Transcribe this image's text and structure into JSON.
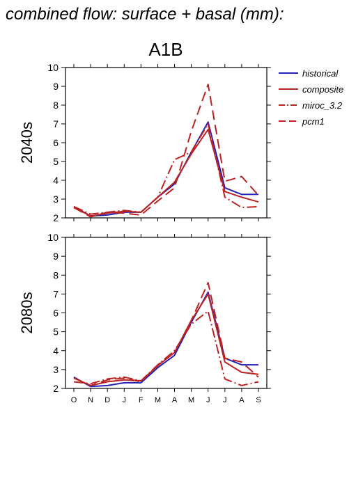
{
  "suptitle": "combined flow: surface + basal (mm):",
  "chart_data": {
    "type": "line",
    "scenario": "A1B",
    "categories": [
      "O",
      "N",
      "D",
      "J",
      "F",
      "M",
      "A",
      "M",
      "J",
      "J",
      "A",
      "S"
    ],
    "ylim": [
      2,
      10
    ],
    "yticks": [
      2,
      3,
      4,
      5,
      6,
      7,
      8,
      9,
      10
    ],
    "legend_position": "top-right, outside plot",
    "series_styles": [
      {
        "name": "historical",
        "color": "#2222bb",
        "dash": "solid"
      },
      {
        "name": "composite",
        "color": "#bb2222",
        "dash": "solid"
      },
      {
        "name": "miroc_3.2",
        "color": "#bb2222",
        "dash": "dashdot"
      },
      {
        "name": "pcm1",
        "color": "#bb2222",
        "dash": "longdash"
      }
    ],
    "panels": [
      {
        "label": "2040s",
        "series": [
          {
            "name": "historical",
            "values": [
              2.6,
              2.1,
              2.15,
              2.3,
              2.3,
              3.1,
              3.8,
              5.5,
              7.1,
              3.6,
              3.25,
              3.25
            ]
          },
          {
            "name": "composite",
            "values": [
              2.55,
              2.1,
              2.25,
              2.35,
              2.3,
              3.1,
              3.9,
              5.4,
              6.7,
              3.4,
              3.1,
              2.85
            ]
          },
          {
            "name": "miroc_3.2",
            "values": [
              2.6,
              2.2,
              2.3,
              2.4,
              2.3,
              3.1,
              5.1,
              5.5,
              7.0,
              3.1,
              2.55,
              2.6
            ]
          },
          {
            "name": "pcm1",
            "values": [
              2.55,
              2.05,
              2.3,
              2.25,
              2.15,
              2.9,
              3.6,
              6.6,
              9.1,
              3.95,
              4.2,
              3.2
            ]
          }
        ]
      },
      {
        "label": "2080s",
        "series": [
          {
            "name": "historical",
            "values": [
              2.6,
              2.1,
              2.15,
              2.3,
              2.3,
              3.1,
              3.75,
              5.5,
              7.1,
              3.6,
              3.25,
              3.25
            ]
          },
          {
            "name": "composite",
            "values": [
              2.55,
              2.15,
              2.35,
              2.45,
              2.4,
              3.2,
              3.9,
              5.6,
              7.0,
              3.4,
              2.85,
              2.75
            ]
          },
          {
            "name": "miroc_3.2",
            "values": [
              2.35,
              2.25,
              2.5,
              2.6,
              2.4,
              3.25,
              4.0,
              5.4,
              6.1,
              2.5,
              2.15,
              2.35
            ]
          },
          {
            "name": "pcm1",
            "values": [
              2.55,
              2.15,
              2.45,
              2.55,
              2.35,
              3.25,
              3.9,
              5.6,
              7.6,
              3.6,
              3.4,
              2.6
            ]
          }
        ]
      }
    ]
  }
}
